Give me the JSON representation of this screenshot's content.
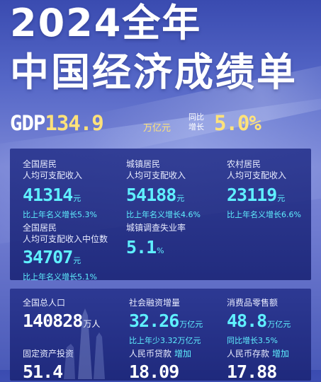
{
  "header": {
    "title_line1": "2024全年",
    "title_line2": "中国经济成绩单"
  },
  "gdp": {
    "prefix": "GDP",
    "value": "134.9",
    "unit": "万亿元",
    "compare_label": "同比增长",
    "growth": "5.0%"
  },
  "income": {
    "national": {
      "label_line1": "全国居民",
      "label_line2": "人均可支配收入",
      "value": "41314",
      "unit": "元",
      "note": "比上年名义增长5.3%"
    },
    "urban": {
      "label_line1": "城镇居民",
      "label_line2": "人均可支配收入",
      "value": "54188",
      "unit": "元",
      "note": "比上年名义增长4.6%"
    },
    "rural": {
      "label_line1": "农村居民",
      "label_line2": "人均可支配收入",
      "value": "23119",
      "unit": "元",
      "note": "比上年名义增长6.6%"
    },
    "median": {
      "label_line1": "全国居民",
      "label_line2": "人均可支配收入中位数",
      "value": "34707",
      "unit": "元",
      "note": "比上年名义增长5.1%"
    },
    "unemployment": {
      "label": "城镇调查失业率",
      "value": "5.1",
      "unit": "%"
    }
  },
  "stats": {
    "population": {
      "label": "全国总人口",
      "value": "140828",
      "unit": "万人"
    },
    "social_financing": {
      "label": "社会融资增量",
      "value": "32.26",
      "unit": "万亿元",
      "note": "比上年少3.32万亿元"
    },
    "retail": {
      "label": "消费品零售额",
      "value": "48.8",
      "unit": "万亿元",
      "note": "同比增长3.5%"
    },
    "fixed_asset": {
      "label": "固定资产投资",
      "value": "51.4"
    },
    "rmb_loans": {
      "label": "人民币贷款",
      "tag": "增加",
      "value": "18.09"
    },
    "rmb_deposits": {
      "label": "人民币存款",
      "tag": "增加",
      "value": "17.88"
    }
  }
}
